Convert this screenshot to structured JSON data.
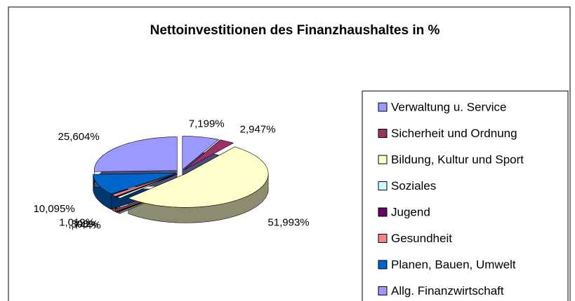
{
  "chart_data": {
    "type": "pie3d",
    "title": "Nettoinvestitionen des Finanzhaushaltes in %",
    "categories": [
      "Verwaltung u. Service",
      "Sicherheit und Ordnung",
      "Bildung, Kultur und Sport",
      "Soziales",
      "Jugend",
      "Gesundheit",
      "Planen, Bauen, Umwelt",
      "Allg. Finanzwirtschaft"
    ],
    "values": [
      7.199,
      2.947,
      51.993,
      0.744,
      0.398,
      1.019,
      10.095,
      25.604
    ],
    "value_labels": [
      "7,199%",
      "2,947%",
      "51,993%",
      ",744%",
      ",398%",
      "1,019%",
      "10,095%",
      "25,604%"
    ],
    "colors": [
      "#9999ff",
      "#993366",
      "#ffffcc",
      "#ccffff",
      "#660066",
      "#ff8080",
      "#0066cc",
      "#9999ff"
    ],
    "legend": "right"
  }
}
